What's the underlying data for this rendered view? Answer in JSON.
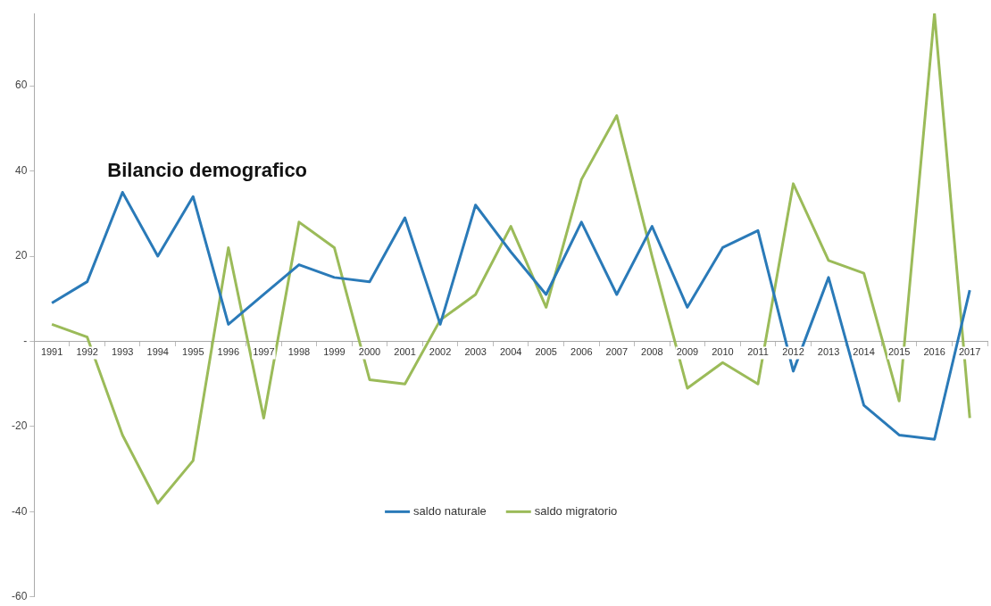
{
  "chart_data": {
    "type": "line",
    "title": "Bilancio demografico",
    "categories": [
      "1991",
      "1992",
      "1993",
      "1994",
      "1995",
      "1996",
      "1997",
      "1998",
      "1999",
      "2000",
      "2001",
      "2002",
      "2003",
      "2004",
      "2005",
      "2006",
      "2007",
      "2008",
      "2009",
      "2010",
      "2011",
      "2012",
      "2013",
      "2014",
      "2015",
      "2016",
      "2017"
    ],
    "series": [
      {
        "name": "saldo naturale",
        "color": "#2a7ab8",
        "values": [
          9,
          14,
          35,
          20,
          34,
          4,
          11,
          18,
          15,
          14,
          29,
          4,
          32,
          21,
          11,
          28,
          11,
          27,
          8,
          22,
          26,
          -7,
          15,
          -15,
          -22,
          -23,
          12
        ]
      },
      {
        "name": "saldo migratorio",
        "color": "#9bbb59",
        "values": [
          4,
          1,
          -22,
          -38,
          -28,
          22,
          -18,
          28,
          22,
          -9,
          -10,
          5,
          11,
          27,
          8,
          38,
          53,
          20,
          -11,
          -5,
          -10,
          37,
          19,
          16,
          -14,
          77,
          -18
        ]
      }
    ],
    "ylim": [
      -60,
      77
    ],
    "yticks": [
      -60,
      -40,
      -20,
      {
        "value": 0,
        "label": "-"
      },
      20,
      40,
      60
    ],
    "grid": false,
    "legend": "bottom",
    "marker": "none",
    "line_style": "solid"
  }
}
